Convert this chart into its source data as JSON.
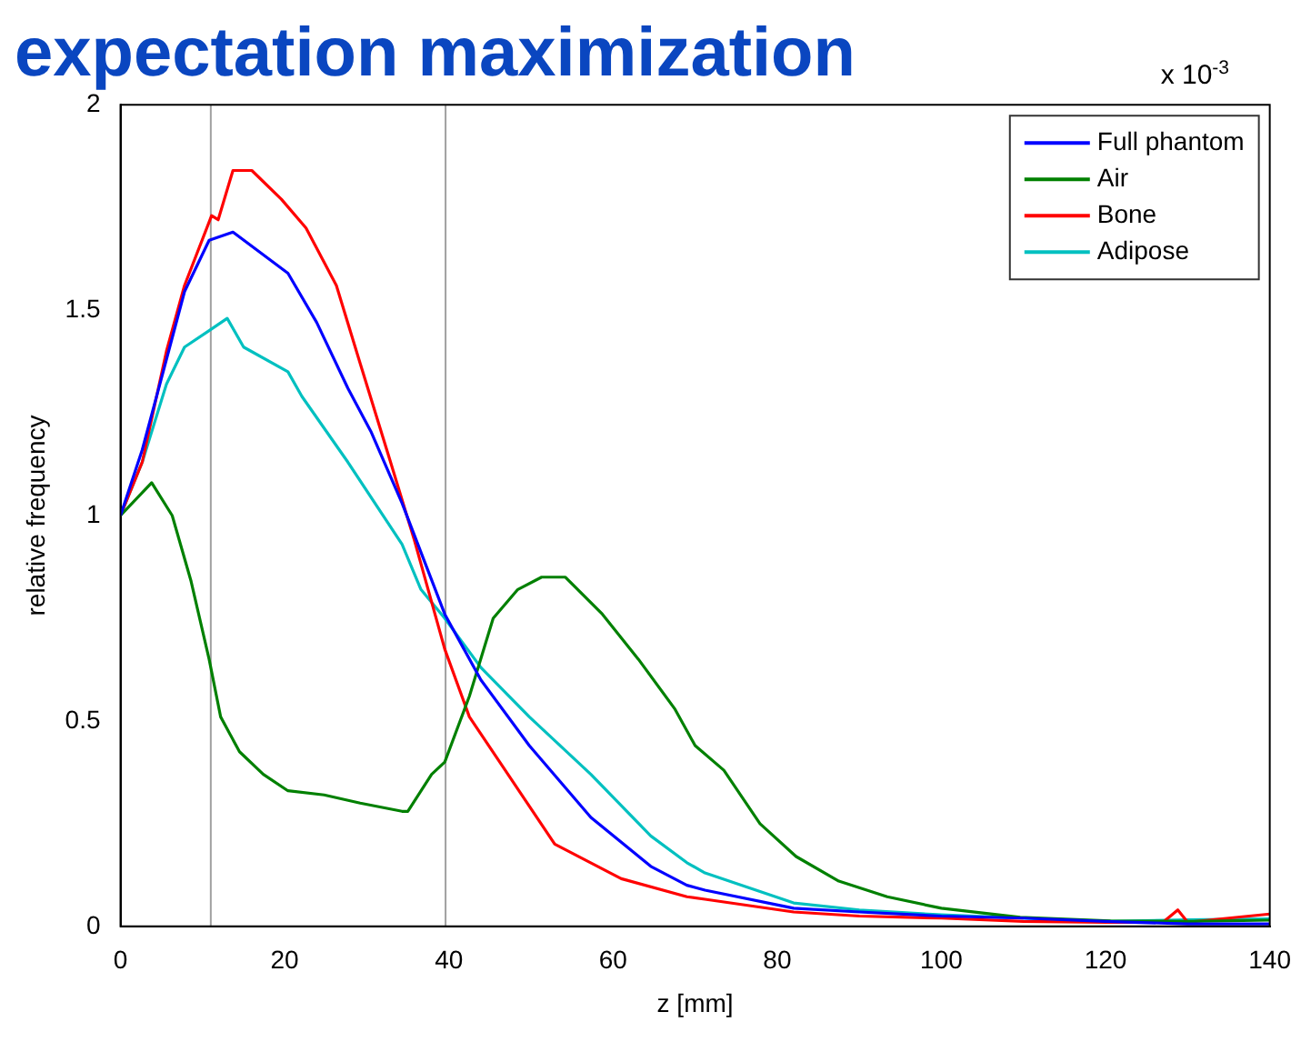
{
  "chart_data": {
    "type": "line",
    "title": "expectation maximization",
    "xlabel": "z [mm]",
    "ylabel": "relative frequency",
    "annotations": [
      "x 10$^{-3}$"
    ],
    "xlim": [
      0,
      140
    ],
    "ylim": [
      0,
      2
    ],
    "xticks": [
      0,
      20,
      40,
      60,
      80,
      100,
      120,
      140
    ],
    "yticks": [
      0,
      0.5,
      1,
      1.5,
      2
    ],
    "grid": false,
    "legend": "top right",
    "marker": "none",
    "line_style": "solid",
    "ref_lines": [
      {
        "axis": "x",
        "value": 11,
        "color": "#a0a0a0"
      },
      {
        "axis": "x",
        "value": 39.6,
        "color": "#a0a0a0"
      }
    ],
    "series": [
      {
        "name": "Full phantom",
        "color": "#0000ff",
        "x": [
          0,
          2.65,
          5.6,
          7.8,
          10.8,
          13.7,
          20.4,
          23.9,
          27.7,
          30.5,
          34.3,
          39.5,
          43.9,
          49.8,
          57.3,
          64.6,
          69,
          71.2,
          82,
          90,
          100,
          110,
          120,
          130,
          140
        ],
        "values": [
          1,
          1.16,
          1.38,
          1.545,
          1.67,
          1.69,
          1.59,
          1.47,
          1.31,
          1.205,
          1.03,
          0.76,
          0.6,
          0.44,
          0.265,
          0.146,
          0.1,
          0.088,
          0.044,
          0.035,
          0.025,
          0.02,
          0.012,
          0.006,
          0.006
        ]
      },
      {
        "name": "Air",
        "color": "#008000",
        "x": [
          0,
          3.8,
          6.3,
          8.6,
          10.8,
          12.2,
          14.5,
          17.4,
          20.4,
          24.8,
          29.2,
          34.3,
          35,
          37.9,
          39.5,
          42.5,
          45.4,
          48.4,
          51.3,
          54.2,
          58.7,
          63.1,
          67.5,
          70,
          73.5,
          77.9,
          82.3,
          87.5,
          93.4,
          100,
          109.6,
          120.6,
          130,
          140
        ],
        "values": [
          1,
          1.08,
          1,
          0.84,
          0.65,
          0.51,
          0.425,
          0.37,
          0.33,
          0.32,
          0.3,
          0.28,
          0.28,
          0.37,
          0.4,
          0.56,
          0.75,
          0.82,
          0.85,
          0.85,
          0.76,
          0.65,
          0.53,
          0.44,
          0.38,
          0.25,
          0.17,
          0.11,
          0.072,
          0.044,
          0.022,
          0.013,
          0.012,
          0.015
        ]
      },
      {
        "name": "Bone",
        "color": "#ff0000",
        "x": [
          0,
          2.65,
          5.6,
          7.8,
          11.1,
          11.9,
          13.7,
          16,
          19.6,
          22.6,
          26.3,
          29.2,
          32.9,
          35.8,
          39.5,
          42.5,
          46.2,
          52.9,
          61,
          69,
          71.2,
          82,
          90,
          100,
          110,
          120,
          127,
          128.8,
          130,
          140
        ],
        "values": [
          1,
          1.13,
          1.4,
          1.56,
          1.73,
          1.72,
          1.84,
          1.84,
          1.77,
          1.7,
          1.56,
          1.37,
          1.13,
          0.94,
          0.675,
          0.51,
          0.4,
          0.2,
          0.116,
          0.072,
          0.066,
          0.035,
          0.025,
          0.02,
          0.012,
          0.01,
          0.01,
          0.04,
          0.01,
          0.03
        ]
      },
      {
        "name": "Adipose",
        "color": "#00c0c0",
        "x": [
          0,
          2.65,
          5.6,
          7.8,
          10.8,
          13,
          15,
          20.4,
          22.1,
          27.7,
          34.3,
          36.6,
          39.5,
          43.9,
          49.8,
          57.3,
          64.6,
          69,
          71.2,
          82,
          90,
          100,
          110,
          120,
          130,
          140
        ],
        "values": [
          1,
          1.13,
          1.32,
          1.41,
          1.45,
          1.48,
          1.41,
          1.35,
          1.29,
          1.13,
          0.93,
          0.82,
          0.75,
          0.63,
          0.51,
          0.37,
          0.22,
          0.155,
          0.13,
          0.057,
          0.04,
          0.028,
          0.02,
          0.012,
          0.016,
          0.018
        ]
      }
    ]
  }
}
